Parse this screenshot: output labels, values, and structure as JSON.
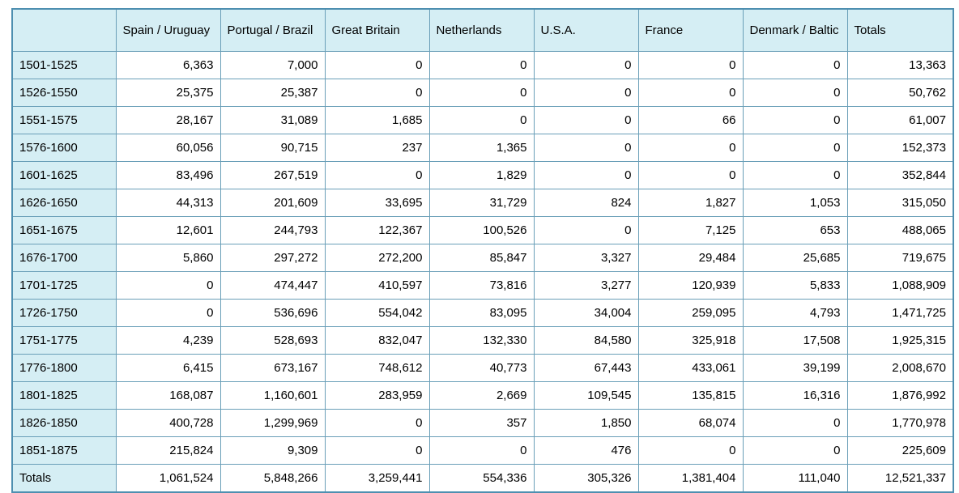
{
  "table": {
    "columns": [
      "",
      "Spain / Uruguay",
      "Portugal / Brazil",
      "Great Britain",
      "Netherlands",
      "U.S.A.",
      "France",
      "Denmark / Baltic",
      "Totals"
    ],
    "rows": [
      {
        "period": "1501-1525",
        "values": [
          "6,363",
          "7,000",
          "0",
          "0",
          "0",
          "0",
          "0",
          "13,363"
        ]
      },
      {
        "period": "1526-1550",
        "values": [
          "25,375",
          "25,387",
          "0",
          "0",
          "0",
          "0",
          "0",
          "50,762"
        ]
      },
      {
        "period": "1551-1575",
        "values": [
          "28,167",
          "31,089",
          "1,685",
          "0",
          "0",
          "66",
          "0",
          "61,007"
        ]
      },
      {
        "period": "1576-1600",
        "values": [
          "60,056",
          "90,715",
          "237",
          "1,365",
          "0",
          "0",
          "0",
          "152,373"
        ]
      },
      {
        "period": "1601-1625",
        "values": [
          "83,496",
          "267,519",
          "0",
          "1,829",
          "0",
          "0",
          "0",
          "352,844"
        ]
      },
      {
        "period": "1626-1650",
        "values": [
          "44,313",
          "201,609",
          "33,695",
          "31,729",
          "824",
          "1,827",
          "1,053",
          "315,050"
        ]
      },
      {
        "period": "1651-1675",
        "values": [
          "12,601",
          "244,793",
          "122,367",
          "100,526",
          "0",
          "7,125",
          "653",
          "488,065"
        ]
      },
      {
        "period": "1676-1700",
        "values": [
          "5,860",
          "297,272",
          "272,200",
          "85,847",
          "3,327",
          "29,484",
          "25,685",
          "719,675"
        ]
      },
      {
        "period": "1701-1725",
        "values": [
          "0",
          "474,447",
          "410,597",
          "73,816",
          "3,277",
          "120,939",
          "5,833",
          "1,088,909"
        ]
      },
      {
        "period": "1726-1750",
        "values": [
          "0",
          "536,696",
          "554,042",
          "83,095",
          "34,004",
          "259,095",
          "4,793",
          "1,471,725"
        ]
      },
      {
        "period": "1751-1775",
        "values": [
          "4,239",
          "528,693",
          "832,047",
          "132,330",
          "84,580",
          "325,918",
          "17,508",
          "1,925,315"
        ]
      },
      {
        "period": "1776-1800",
        "values": [
          "6,415",
          "673,167",
          "748,612",
          "40,773",
          "67,443",
          "433,061",
          "39,199",
          "2,008,670"
        ]
      },
      {
        "period": "1801-1825",
        "values": [
          "168,087",
          "1,160,601",
          "283,959",
          "2,669",
          "109,545",
          "135,815",
          "16,316",
          "1,876,992"
        ]
      },
      {
        "period": "1826-1850",
        "values": [
          "400,728",
          "1,299,969",
          "0",
          "357",
          "1,850",
          "68,074",
          "0",
          "1,770,978"
        ]
      },
      {
        "period": "1851-1875",
        "values": [
          "215,824",
          "9,309",
          "0",
          "0",
          "476",
          "0",
          "0",
          "225,609"
        ]
      },
      {
        "period": "Totals",
        "values": [
          "1,061,524",
          "5,848,266",
          "3,259,441",
          "554,336",
          "305,326",
          "1,381,404",
          "111,040",
          "12,521,337"
        ]
      }
    ]
  }
}
